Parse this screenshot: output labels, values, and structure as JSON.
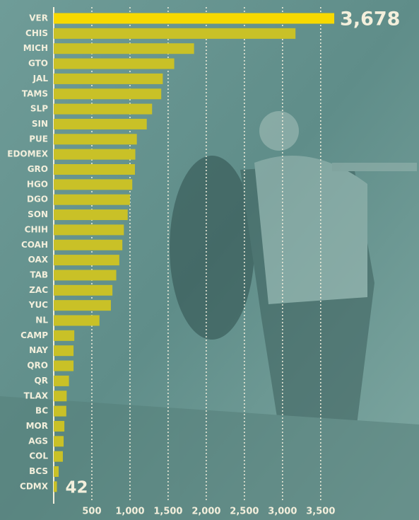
{
  "chart_data": {
    "type": "bar",
    "orientation": "horizontal",
    "categories": [
      "VER",
      "CHIS",
      "MICH",
      "GTO",
      "JAL",
      "TAMS",
      "SLP",
      "SIN",
      "PUE",
      "EDOMEX",
      "GRO",
      "HGO",
      "DGO",
      "SON",
      "CHIH",
      "COAH",
      "OAX",
      "TAB",
      "ZAC",
      "YUC",
      "NL",
      "CAMP",
      "NAY",
      "QRO",
      "QR",
      "TLAX",
      "BC",
      "MOR",
      "AGS",
      "COL",
      "BCS",
      "CDMX"
    ],
    "values": [
      3678,
      3170,
      1840,
      1580,
      1430,
      1410,
      1290,
      1220,
      1090,
      1070,
      1065,
      1030,
      1000,
      970,
      920,
      900,
      860,
      820,
      770,
      750,
      600,
      270,
      260,
      260,
      200,
      170,
      165,
      140,
      130,
      120,
      65,
      42
    ],
    "value_labels": [
      "3,678",
      null,
      null,
      null,
      null,
      null,
      null,
      null,
      null,
      null,
      null,
      null,
      null,
      null,
      null,
      null,
      null,
      null,
      null,
      null,
      null,
      null,
      null,
      null,
      null,
      null,
      null,
      null,
      null,
      null,
      null,
      "42"
    ],
    "colors": [
      "#f7d900",
      "#c9c127"
    ],
    "xlim": [
      0,
      4780
    ],
    "xticks": [
      500,
      {
        "value": 1000,
        "label": "1,000"
      },
      {
        "value": 1500,
        "label": "1,500"
      },
      {
        "value": 2000,
        "label": "2,000"
      },
      {
        "value": 2500,
        "label": "2,500"
      },
      {
        "value": 3000,
        "label": "3,000"
      },
      {
        "value": 3500,
        "label": "3,500"
      }
    ],
    "grid": true
  }
}
